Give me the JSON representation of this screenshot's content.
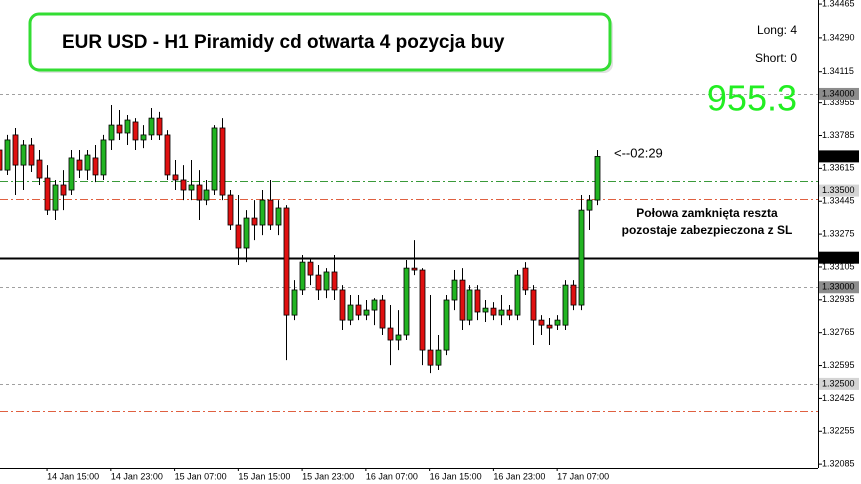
{
  "chart_data": {
    "type": "candlestick",
    "title": "EUR USD - H1 Piramidy cd otwarta 4 pozycja buy",
    "annotations": {
      "long": "Long: 4",
      "short": "Short: 0",
      "profit": "955.3",
      "timer": "<--02:29",
      "note": [
        "Połowa zamknięta reszta",
        "pozostaje zabezpieczona z SL"
      ]
    },
    "categories": [
      null,
      null,
      null,
      null,
      null,
      null,
      "14 Jan 15:00",
      null,
      null,
      null,
      null,
      null,
      null,
      null,
      "14 Jan 23:00",
      null,
      null,
      null,
      null,
      null,
      null,
      null,
      "15 Jan 07:00",
      null,
      null,
      null,
      null,
      null,
      null,
      null,
      "15 Jan 15:00",
      null,
      null,
      null,
      null,
      null,
      null,
      null,
      "15 Jan 23:00",
      null,
      null,
      null,
      null,
      null,
      null,
      null,
      "16 Jan 07:00",
      null,
      null,
      null,
      null,
      null,
      null,
      null,
      "16 Jan 15:00",
      null,
      null,
      null,
      null,
      null,
      null,
      null,
      "16 Jan 23:00",
      null,
      null,
      null,
      null,
      null,
      null,
      null,
      "17 Jan 07:00",
      null,
      null,
      null,
      null,
      null
    ],
    "open": [
      1.3371,
      1.33606,
      1.33788,
      1.33632,
      1.33736,
      1.33658,
      1.33565,
      1.33399,
      1.33529,
      1.33503,
      1.33658,
      1.33606,
      1.33669,
      1.33581,
      1.33762,
      1.33839,
      1.33798,
      1.33855,
      1.33762,
      1.33788,
      1.33875,
      1.33788,
      1.33581,
      1.33555,
      1.33503,
      1.33529,
      1.33451,
      1.33503,
      1.33824,
      1.33477,
      1.33322,
      1.33203,
      1.33358,
      1.33322,
      1.33451,
      1.33322,
      1.3341,
      1.32856,
      1.32986,
      1.3313,
      1.33063,
      1.32986,
      1.33079,
      1.32986,
      1.3283,
      1.32908,
      1.32856,
      1.32882,
      1.32934,
      1.32789,
      1.32727,
      1.32753,
      1.33099,
      1.33089,
      1.32675,
      1.32597,
      1.32675,
      1.32934,
      1.33037,
      1.3283,
      1.32986,
      1.32872,
      1.32892,
      1.32856,
      1.32882,
      1.32856,
      1.33099,
      1.32986,
      1.3283,
      1.32804,
      1.32804,
      1.32804,
      1.33011,
      1.32908,
      1.33399,
      1.33451
    ],
    "high": [
      1.33762,
      1.33788,
      1.33824,
      1.33762,
      1.33772,
      1.3371,
      1.33632,
      1.33555,
      1.33606,
      1.3371,
      1.3371,
      1.3371,
      1.33736,
      1.33788,
      1.33943,
      1.33917,
      1.33891,
      1.33875,
      1.33839,
      1.33927,
      1.33907,
      1.33813,
      1.33658,
      1.33632,
      1.33658,
      1.33606,
      1.33555,
      1.33839,
      1.33875,
      1.33503,
      1.33477,
      1.33399,
      1.33451,
      1.33503,
      1.33555,
      1.33451,
      1.33425,
      1.33037,
      1.33167,
      1.33151,
      1.33115,
      1.33099,
      1.33167,
      1.33011,
      1.3296,
      1.3296,
      1.32934,
      1.32944,
      1.3296,
      1.32908,
      1.32882,
      1.33141,
      1.33244,
      1.33099,
      1.3296,
      1.32753,
      1.3296,
      1.33089,
      1.33099,
      1.33011,
      1.33011,
      1.32934,
      1.32923,
      1.3296,
      1.32908,
      1.33089,
      1.3313,
      1.33011,
      1.32856,
      1.32841,
      1.32856,
      1.33037,
      1.33037,
      1.33477,
      1.33477,
      1.3371
    ],
    "low": [
      1.33529,
      1.33581,
      1.33477,
      1.33503,
      1.33596,
      1.33529,
      1.33374,
      1.33348,
      1.33399,
      1.33477,
      1.33565,
      1.33555,
      1.33544,
      1.33555,
      1.3371,
      1.33762,
      1.33736,
      1.3371,
      1.3372,
      1.33762,
      1.33762,
      1.33555,
      1.33503,
      1.33451,
      1.33451,
      1.33348,
      1.33425,
      1.33477,
      1.33451,
      1.33296,
      1.33115,
      1.3313,
      1.33244,
      1.3327,
      1.33296,
      1.3327,
      1.32623,
      1.3283,
      1.3296,
      1.33011,
      1.32934,
      1.32944,
      1.32934,
      1.32779,
      1.32804,
      1.3283,
      1.3283,
      1.32804,
      1.32753,
      1.32597,
      1.32675,
      1.32727,
      1.33063,
      1.32597,
      1.32556,
      1.32572,
      1.32649,
      1.32882,
      1.32779,
      1.32804,
      1.3283,
      1.3282,
      1.3283,
      1.32804,
      1.3283,
      1.3283,
      1.3296,
      1.32701,
      1.32753,
      1.32701,
      1.32779,
      1.32779,
      1.32882,
      1.32882,
      1.33296,
      1.33425
    ],
    "close": [
      1.33606,
      1.33762,
      1.33632,
      1.33736,
      1.33632,
      1.33565,
      1.33399,
      1.33529,
      1.33477,
      1.33669,
      1.33606,
      1.33684,
      1.33581,
      1.33762,
      1.33839,
      1.33798,
      1.33865,
      1.33762,
      1.33788,
      1.33875,
      1.33788,
      1.33581,
      1.33555,
      1.33503,
      1.33529,
      1.33451,
      1.33503,
      1.33824,
      1.33477,
      1.33322,
      1.33203,
      1.33358,
      1.33322,
      1.33451,
      1.33322,
      1.3341,
      1.32856,
      1.32986,
      1.3313,
      1.33063,
      1.32986,
      1.33079,
      1.32986,
      1.3283,
      1.32908,
      1.32856,
      1.32882,
      1.32934,
      1.32789,
      1.32727,
      1.32753,
      1.33099,
      1.33089,
      1.32675,
      1.32597,
      1.32675,
      1.32934,
      1.33037,
      1.3283,
      1.32986,
      1.32872,
      1.32892,
      1.32856,
      1.32882,
      1.32856,
      1.33063,
      1.32986,
      1.3283,
      1.32804,
      1.32789,
      1.3283,
      1.33011,
      1.32908,
      1.33399,
      1.33451,
      1.33677
    ],
    "up_color": "#22b422",
    "down_color": "#e01010",
    "ylim": [
      1.32065,
      1.34486
    ],
    "yticks": [
      1.34465,
      {
        "value": 1.3429,
        "label": "1.34290"
      },
      1.34115,
      1.33955,
      1.33785,
      1.33615,
      1.33445,
      1.33275,
      1.33105,
      1.32935,
      1.32765,
      1.32595,
      1.32425,
      1.32255,
      1.32085
    ],
    "levels": [
      {
        "value": 1.34,
        "color": "#a0a0a0",
        "style": "dash"
      },
      {
        "value": 1.33549,
        "color": "#3a9a3a",
        "style": "dashdot"
      },
      {
        "value": 1.33456,
        "color": "#e06040",
        "style": "dashdot"
      },
      {
        "value": 1.33153,
        "color": "#000000",
        "style": "solid"
      },
      {
        "value": 1.33,
        "color": "#a0a0a0",
        "style": "dash"
      },
      {
        "value": 1.325,
        "color": "#a0a0a0",
        "style": "dash"
      },
      {
        "value": 1.3236,
        "color": "#e06040",
        "style": "dashdot"
      }
    ],
    "price_labels": [
      {
        "value": 1.34,
        "label": "1.34000"
      },
      1.33677,
      {
        "value": 1.335,
        "label": "1.33500"
      },
      1.33153,
      {
        "value": 1.33,
        "label": "1.33000"
      },
      {
        "value": 1.325,
        "label": "1.32500"
      }
    ],
    "price_label_backgrounds": [
      "#8c8c8c",
      "#000000",
      "#d4d4d4",
      "#000000",
      "#8c8c8c",
      "#d4d4d4"
    ]
  }
}
